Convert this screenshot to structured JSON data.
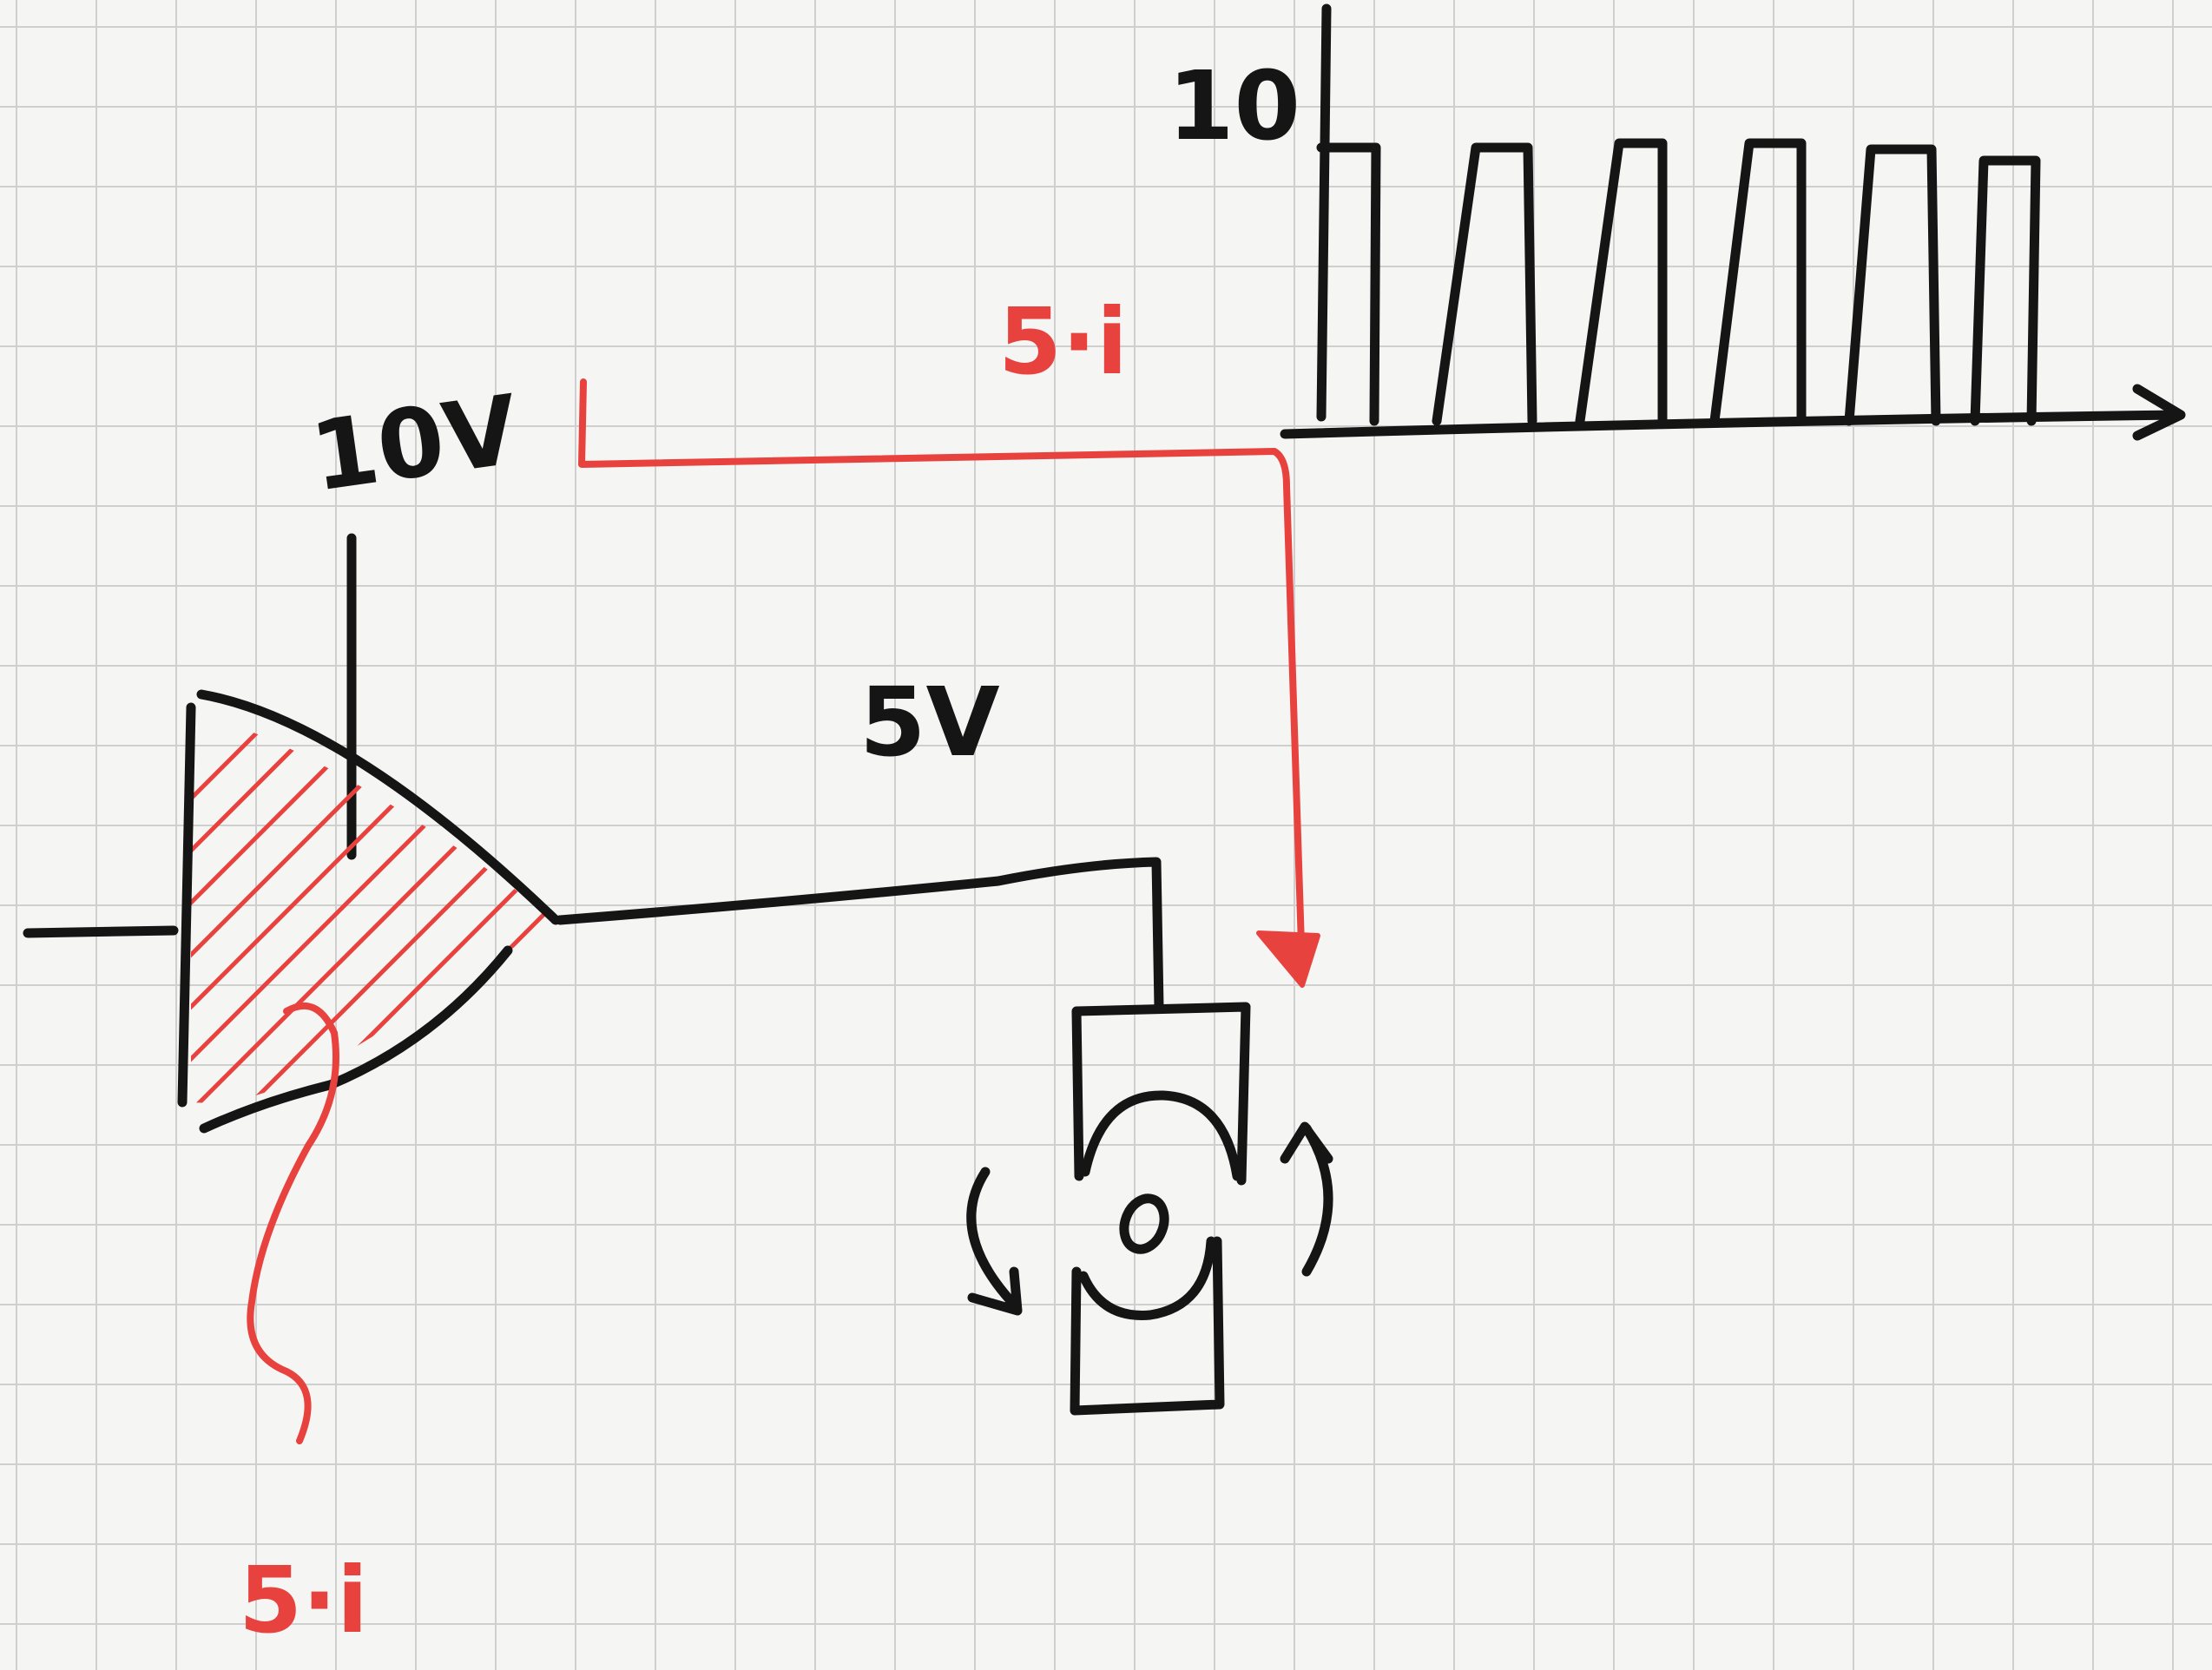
{
  "labels": {
    "axis_top": "10",
    "top_signal": "5·i",
    "supply": "10V",
    "output": "5V",
    "bottom_signal": "5·i"
  },
  "colors": {
    "ink": "#151515",
    "signal": "#e8423f",
    "grid": "#cfcfcf",
    "paper": "#f5f5f3"
  }
}
